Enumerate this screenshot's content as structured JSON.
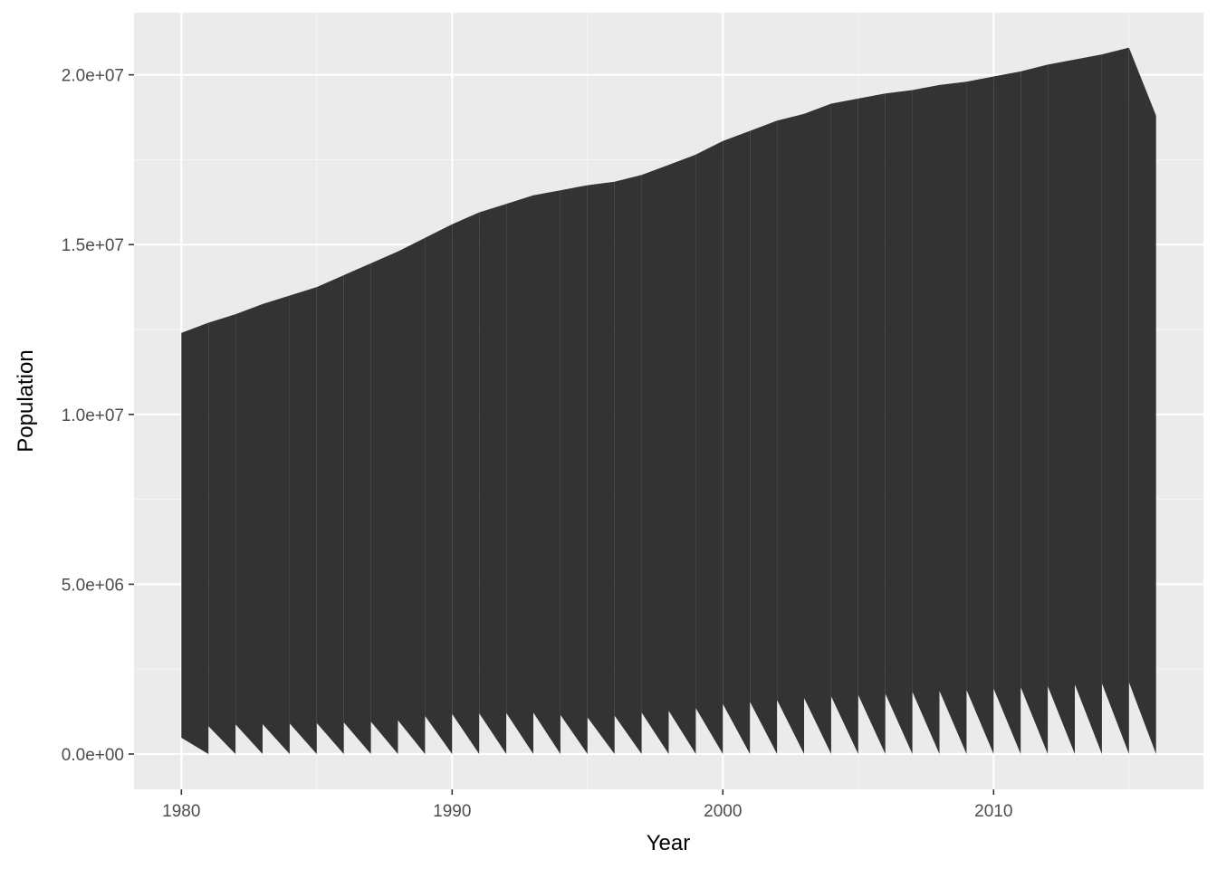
{
  "chart_data": {
    "type": "area",
    "title": "",
    "xlabel": "Year",
    "ylabel": "Population",
    "xlim": [
      1978.25,
      2017.75
    ],
    "ylim": [
      -1040000,
      21830000
    ],
    "grid": true,
    "legend": "none",
    "x_ticks": [
      {
        "value": 1980,
        "label": "1980"
      },
      {
        "value": 1990,
        "label": "1990"
      },
      {
        "value": 2000,
        "label": "2000"
      },
      {
        "value": 2010,
        "label": "2010"
      }
    ],
    "y_ticks": [
      {
        "value": 0,
        "label": "0.0e+00"
      },
      {
        "value": 5000000,
        "label": "5.0e+06"
      },
      {
        "value": 10000000,
        "label": "1.0e+07"
      },
      {
        "value": 15000000,
        "label": "1.5e+07"
      },
      {
        "value": 20000000,
        "label": "2.0e+07"
      }
    ],
    "series_years": [
      1980,
      1981,
      1982,
      1983,
      1984,
      1985,
      1986,
      1987,
      1988,
      1989,
      1990,
      1991,
      1992,
      1993,
      1994,
      1995,
      1996,
      1997,
      1998,
      1999,
      2000,
      2001,
      2002,
      2003,
      2004,
      2005,
      2006,
      2007,
      2008,
      2009,
      2010,
      2011,
      2012,
      2013,
      2014,
      2015,
      2016
    ],
    "top_values": [
      12400000,
      12700000,
      12950000,
      13250000,
      13500000,
      13750000,
      14100000,
      14450000,
      14800000,
      15200000,
      15600000,
      15950000,
      16200000,
      16450000,
      16600000,
      16750000,
      16850000,
      17050000,
      17350000,
      17650000,
      18050000,
      18350000,
      18650000,
      18850000,
      19150000,
      19300000,
      19450000,
      19550000,
      19700000,
      19800000,
      19950000,
      20100000,
      20300000,
      20450000,
      20600000,
      20800000,
      18800000
    ],
    "bottom_values": [
      480000,
      820000,
      870000,
      880000,
      900000,
      910000,
      930000,
      950000,
      990000,
      1120000,
      1180000,
      1200000,
      1210000,
      1220000,
      1150000,
      1080000,
      1130000,
      1220000,
      1270000,
      1350000,
      1470000,
      1540000,
      1590000,
      1650000,
      1700000,
      1740000,
      1780000,
      1830000,
      1860000,
      1890000,
      1930000,
      1970000,
      2000000,
      2050000,
      2080000,
      2110000,
      2140000
    ],
    "colors": {
      "panel_background": "#EBEBEB",
      "major_grid": "#FFFFFF",
      "minor_grid": "#F5F5F5",
      "fill": "#333333",
      "tick_mark": "#333333"
    }
  }
}
